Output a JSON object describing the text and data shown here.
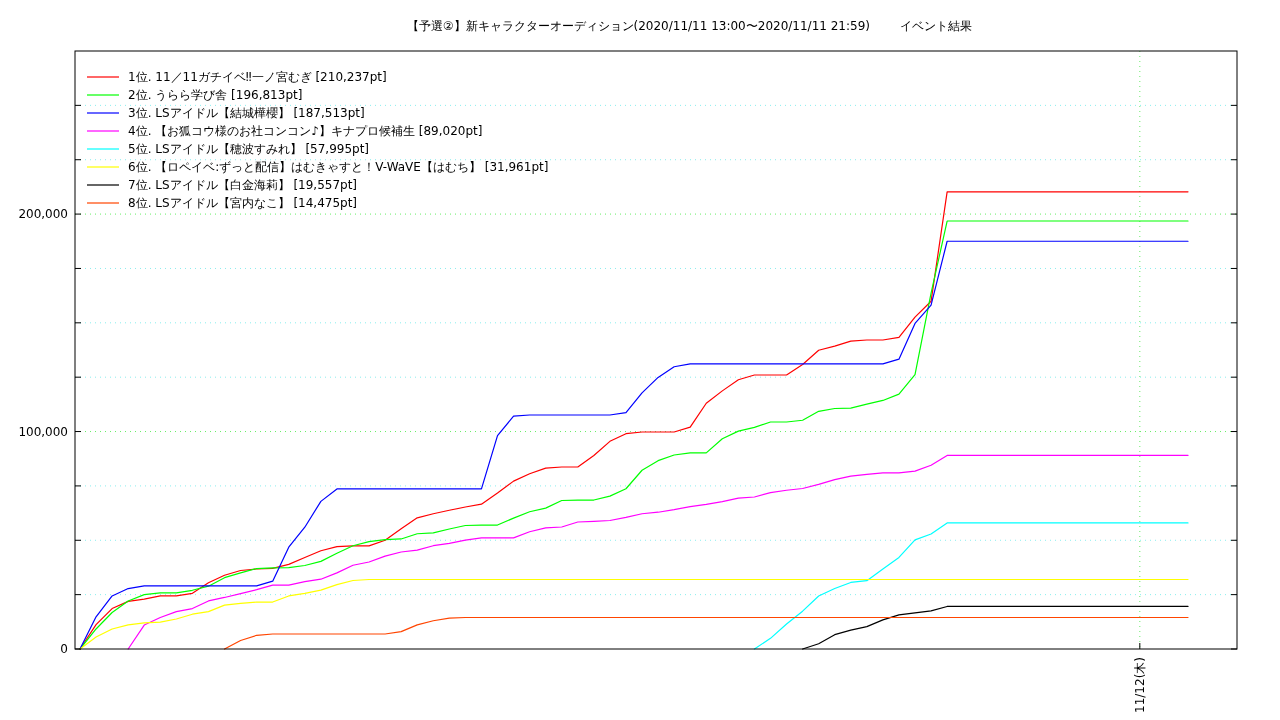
{
  "chart_data": {
    "type": "line",
    "title": "【予選②】新キャラクターオーディション(2020/11/11 13:00〜2020/11/11 21:59)",
    "subtitle": "イベント結果",
    "ylim": [
      0,
      275000
    ],
    "categories": [
      null,
      null,
      null,
      null,
      null,
      null,
      null,
      null,
      null,
      null,
      null,
      null,
      null,
      null,
      null,
      null,
      null,
      null,
      null,
      null,
      null,
      null,
      null,
      null,
      null,
      null,
      null,
      null,
      null,
      null,
      null,
      null,
      null,
      null,
      null,
      null,
      null,
      null,
      null,
      null,
      null,
      null,
      null,
      null,
      null,
      null,
      null,
      null,
      null,
      null,
      null,
      null,
      null,
      null,
      null,
      null,
      null,
      null,
      null,
      null,
      null,
      null,
      null,
      null,
      null,
      null,
      "11/12(木)",
      null,
      null,
      null
    ],
    "yticks": [
      {
        "value": 0,
        "label": "0"
      },
      {
        "value": 25000,
        "label": null
      },
      {
        "value": 50000,
        "label": null
      },
      {
        "value": 75000,
        "label": null
      },
      {
        "value": 100000,
        "label": "100,000"
      },
      {
        "value": 125000,
        "label": null
      },
      {
        "value": 150000,
        "label": null
      },
      {
        "value": 175000,
        "label": null
      },
      {
        "value": 200000,
        "label": "200,000"
      },
      {
        "value": 225000,
        "label": null
      },
      {
        "value": 250000,
        "label": null
      }
    ],
    "grid": true,
    "legend": "top left",
    "series": [
      {
        "name": "1位. 11／11ガチイベ‼一ノ宮むぎ [210,237pt]",
        "color": "#ff0000",
        "values": [
          0,
          11200,
          18600,
          21900,
          22900,
          24400,
          24400,
          25600,
          30500,
          33900,
          36100,
          36800,
          37100,
          38900,
          42100,
          45200,
          47100,
          47400,
          47400,
          50000,
          55300,
          60300,
          62200,
          63800,
          65300,
          66600,
          71700,
          77200,
          80600,
          83200,
          83700,
          83700,
          89000,
          95500,
          99000,
          99800,
          99800,
          99800,
          102000,
          113000,
          118700,
          123800,
          126000,
          126000,
          126000,
          130800,
          137400,
          139300,
          141600,
          142100,
          142100,
          143300,
          152600,
          159900,
          210237,
          210237,
          210237,
          210237,
          210237,
          210237,
          210237,
          210237,
          210237,
          210237,
          210237,
          210237,
          210237,
          210237,
          210237,
          210237
        ]
      },
      {
        "name": "2位. うらら学び舎 [196,813pt]",
        "color": "#00ff00",
        "values": [
          0,
          9200,
          16800,
          22100,
          25000,
          25800,
          25800,
          27000,
          28900,
          32800,
          35000,
          37000,
          37300,
          37400,
          38400,
          40300,
          44000,
          47500,
          49400,
          50300,
          50600,
          53000,
          53400,
          55200,
          56800,
          57000,
          57000,
          60200,
          63100,
          64800,
          68300,
          68500,
          68500,
          70300,
          73700,
          82200,
          86600,
          89200,
          90200,
          90200,
          96700,
          100200,
          101900,
          104400,
          104400,
          105200,
          109300,
          110600,
          110800,
          112600,
          114300,
          117200,
          126200,
          163600,
          196813,
          196813,
          196813,
          196813,
          196813,
          196813,
          196813,
          196813,
          196813,
          196813,
          196813,
          196813,
          196813,
          196813,
          196813,
          196813
        ]
      },
      {
        "name": "3位. LSアイドル【結城樺櫻】 [187,513pt]",
        "color": "#0000ff",
        "values": [
          0,
          14800,
          24400,
          27800,
          29000,
          29000,
          29000,
          29000,
          29000,
          29000,
          29000,
          29000,
          31200,
          46800,
          56000,
          67900,
          73600,
          73600,
          73600,
          73600,
          73600,
          73600,
          73600,
          73600,
          73600,
          73600,
          98100,
          107100,
          107600,
          107600,
          107600,
          107600,
          107600,
          107600,
          108700,
          117800,
          124900,
          129800,
          131100,
          131100,
          131100,
          131100,
          131100,
          131100,
          131100,
          131100,
          131100,
          131100,
          131100,
          131100,
          131100,
          133300,
          149700,
          158100,
          187513,
          187513,
          187513,
          187513,
          187513,
          187513,
          187513,
          187513,
          187513,
          187513,
          187513,
          187513,
          187513,
          187513,
          187513,
          187513
        ]
      },
      {
        "name": "4位. 【お狐コウ様のお社コンコン♪】キナプロ候補生 [89,020pt]",
        "color": "#ff00ff",
        "values": [
          null,
          null,
          null,
          0,
          11000,
          14500,
          17200,
          18600,
          22100,
          23700,
          25500,
          27300,
          29400,
          29400,
          31000,
          32100,
          35000,
          38500,
          40000,
          42700,
          44600,
          45500,
          47500,
          48600,
          50100,
          51100,
          51100,
          51100,
          53900,
          55700,
          56100,
          58400,
          58700,
          59100,
          60500,
          62200,
          62900,
          64100,
          65500,
          66500,
          67800,
          69400,
          69900,
          71900,
          73000,
          73800,
          75700,
          77900,
          79500,
          80300,
          81000,
          81000,
          81800,
          84500,
          89020,
          89020,
          89020,
          89020,
          89020,
          89020,
          89020,
          89020,
          89020,
          89020,
          89020,
          89020,
          89020,
          89020,
          89020,
          89020
        ]
      },
      {
        "name": "5位. LSアイドル【穂波すみれ】 [57,995pt]",
        "color": "#00ffff",
        "values": [
          null,
          null,
          null,
          null,
          null,
          null,
          null,
          null,
          null,
          null,
          null,
          null,
          null,
          null,
          null,
          null,
          null,
          null,
          null,
          null,
          null,
          null,
          null,
          null,
          null,
          null,
          null,
          null,
          null,
          null,
          null,
          null,
          null,
          null,
          null,
          null,
          null,
          null,
          null,
          null,
          null,
          null,
          0,
          4900,
          11500,
          17400,
          24400,
          27800,
          30600,
          31400,
          36800,
          42100,
          50200,
          52900,
          57995,
          57995,
          57995,
          57995,
          57995,
          57995,
          57995,
          57995,
          57995,
          57995,
          57995,
          57995,
          57995,
          57995,
          57995,
          57995
        ]
      },
      {
        "name": "6位. 【ロペイベ:ずっと配信】はむきゃすと！V-WaVE【はむち】 [31,961pt]",
        "color": "#ffff00",
        "values": [
          0,
          5500,
          9200,
          11100,
          12000,
          12400,
          13800,
          16000,
          17200,
          20200,
          21000,
          21600,
          21600,
          24400,
          25600,
          27100,
          29600,
          31500,
          31961,
          31961,
          31961,
          31961,
          31961,
          31961,
          31961,
          31961,
          31961,
          31961,
          31961,
          31961,
          31961,
          31961,
          31961,
          31961,
          31961,
          31961,
          31961,
          31961,
          31961,
          31961,
          31961,
          31961,
          31961,
          31961,
          31961,
          31961,
          31961,
          31961,
          31961,
          31961,
          31961,
          31961,
          31961,
          31961,
          31961,
          31961,
          31961,
          31961,
          31961,
          31961,
          31961,
          31961,
          31961,
          31961,
          31961,
          31961,
          31961,
          31961,
          31961,
          31961
        ]
      },
      {
        "name": "7位. LSアイドル【白金海莉】 [19,557pt]",
        "color": "#000000",
        "values": [
          null,
          null,
          null,
          null,
          null,
          null,
          null,
          null,
          null,
          null,
          null,
          null,
          null,
          null,
          null,
          null,
          null,
          null,
          null,
          null,
          null,
          null,
          null,
          null,
          null,
          null,
          null,
          null,
          null,
          null,
          null,
          null,
          null,
          null,
          null,
          null,
          null,
          null,
          null,
          null,
          null,
          null,
          null,
          null,
          null,
          0,
          2400,
          6600,
          8700,
          10300,
          13400,
          15700,
          16600,
          17500,
          19557,
          19557,
          19557,
          19557,
          19557,
          19557,
          19557,
          19557,
          19557,
          19557,
          19557,
          19557,
          19557,
          19557,
          19557,
          19557
        ]
      },
      {
        "name": "8位. LSアイドル【宮内なこ】 [14,475pt]",
        "color": "#ff4500",
        "values": [
          null,
          null,
          null,
          null,
          null,
          null,
          null,
          null,
          null,
          0,
          3900,
          6300,
          6900,
          6900,
          6900,
          6900,
          6900,
          6900,
          6900,
          6900,
          8000,
          11100,
          13000,
          14200,
          14475,
          14475,
          14475,
          14475,
          14475,
          14475,
          14475,
          14475,
          14475,
          14475,
          14475,
          14475,
          14475,
          14475,
          14475,
          14475,
          14475,
          14475,
          14475,
          14475,
          14475,
          14475,
          14475,
          14475,
          14475,
          14475,
          14475,
          14475,
          14475,
          14475,
          14475,
          14475,
          14475,
          14475,
          14475,
          14475,
          14475,
          14475,
          14475,
          14475,
          14475,
          14475,
          14475,
          14475,
          14475,
          14475
        ]
      }
    ]
  }
}
